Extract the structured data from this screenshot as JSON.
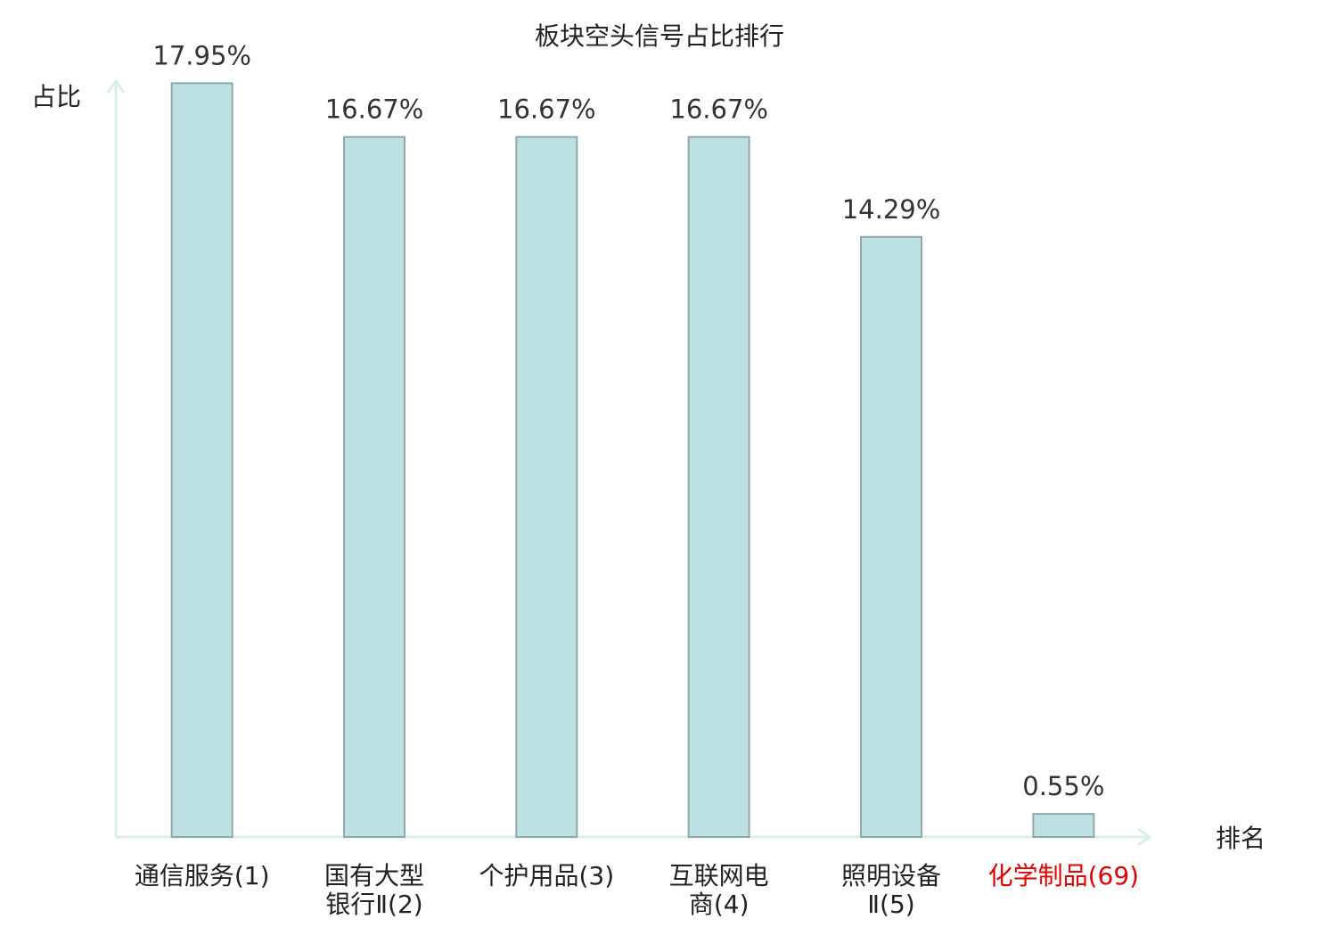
{
  "chart_data": {
    "type": "bar",
    "title": "板块空头信号占比排行",
    "y_label": "占比",
    "x_label": "排名",
    "categories": [
      [
        "通信服务(1)"
      ],
      [
        "国有大型",
        "银行Ⅱ(2)"
      ],
      [
        "个护用品(3)"
      ],
      [
        "互联网电",
        "商(4)"
      ],
      [
        "照明设备",
        "Ⅱ(5)"
      ],
      [
        "化学制品(69)"
      ]
    ],
    "category_colors": [
      "#222222",
      "#222222",
      "#222222",
      "#222222",
      "#222222",
      "#e00000"
    ],
    "values": [
      17.95,
      16.67,
      16.67,
      16.67,
      14.29,
      0.55
    ],
    "value_labels": [
      "17.95%",
      "16.67%",
      "16.67%",
      "16.67%",
      "14.29%",
      "0.55%"
    ],
    "color": "#bde0e3",
    "edge_color": "#8fa9ab",
    "axis_color": "#d8efec",
    "ylim": [
      0,
      18
    ]
  }
}
